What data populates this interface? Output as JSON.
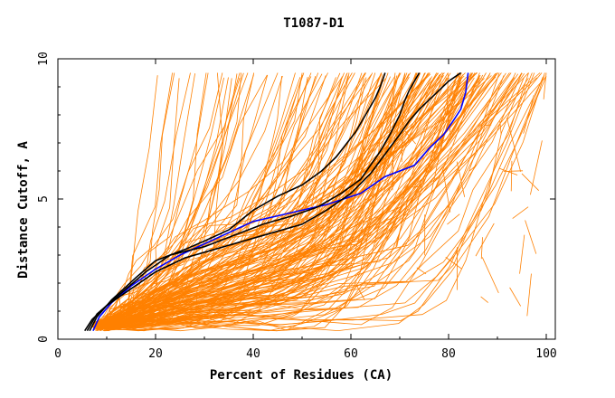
{
  "chart_data": {
    "type": "line",
    "title": "T1087-D1",
    "xlabel": "Percent of Residues (CA)",
    "ylabel": "Distance Cutoff, A",
    "xlim": [
      0,
      100
    ],
    "ylim": [
      0,
      10
    ],
    "x_ticks": [
      "0",
      "20",
      "40",
      "60",
      "80",
      "100"
    ],
    "y_ticks": [
      "0",
      "5",
      "10"
    ],
    "grid": false,
    "legend": "none",
    "colors": {
      "background_models": "#ff8000",
      "highlight_black": "#000000",
      "highlight_blue": "#0000ff",
      "axis": "#000000"
    },
    "highlighted_series": [
      {
        "color": "#0000ff",
        "x": [
          7.2,
          8.5,
          11,
          15,
          20,
          25,
          30,
          35,
          40,
          45,
          50,
          55,
          62,
          67,
          73,
          76,
          79,
          81,
          82.5,
          83.5,
          84
        ],
        "y": [
          0.3,
          0.8,
          1.3,
          1.9,
          2.5,
          3.0,
          3.4,
          3.8,
          4.2,
          4.4,
          4.6,
          4.8,
          5.2,
          5.8,
          6.2,
          6.8,
          7.3,
          7.8,
          8.2,
          8.8,
          9.5
        ]
      },
      {
        "color": "#000000",
        "x": [
          6.5,
          8,
          11,
          16,
          20,
          26,
          30,
          35,
          40,
          45,
          50,
          54,
          57,
          61,
          63,
          65,
          66,
          67
        ],
        "y": [
          0.3,
          0.8,
          1.4,
          2.2,
          2.8,
          3.2,
          3.5,
          3.9,
          4.6,
          5.1,
          5.5,
          6.0,
          6.5,
          7.4,
          8.0,
          8.6,
          9.0,
          9.5
        ]
      },
      {
        "color": "#000000",
        "x": [
          6,
          8,
          12,
          18,
          23,
          30,
          36,
          42,
          48,
          53,
          58,
          62,
          64,
          66,
          68,
          70,
          71,
          72,
          73,
          74
        ],
        "y": [
          0.3,
          0.9,
          1.5,
          2.4,
          3.0,
          3.3,
          3.7,
          4.1,
          4.4,
          4.7,
          5.2,
          5.7,
          6.2,
          6.7,
          7.3,
          8.0,
          8.5,
          8.9,
          9.2,
          9.5
        ]
      },
      {
        "color": "#000000",
        "x": [
          5.5,
          7,
          10,
          15,
          20,
          26,
          32,
          38,
          44,
          50,
          55,
          60,
          64,
          67,
          70,
          72,
          74,
          77,
          80,
          82.5
        ],
        "y": [
          0.3,
          0.7,
          1.2,
          1.8,
          2.4,
          2.9,
          3.2,
          3.5,
          3.8,
          4.1,
          4.6,
          5.2,
          5.9,
          6.6,
          7.3,
          7.8,
          8.2,
          8.7,
          9.2,
          9.5
        ]
      }
    ]
  }
}
